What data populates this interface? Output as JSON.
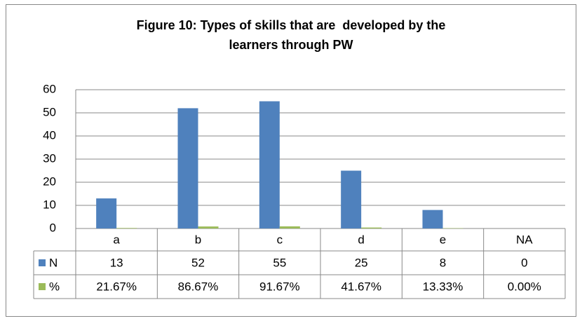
{
  "chart_data": {
    "type": "bar",
    "title": "Figure 10: Types of skills that are  developed by the learners through PW",
    "categories": [
      "a",
      "b",
      "c",
      "d",
      "e",
      "NA"
    ],
    "series": [
      {
        "name": "N",
        "color": "#4f81bd",
        "values": [
          13,
          52,
          55,
          25,
          8,
          0
        ]
      },
      {
        "name": "%",
        "color": "#9bbb59",
        "values": [
          0.2167,
          0.8667,
          0.9167,
          0.4167,
          0.1333,
          0
        ],
        "value_labels": [
          "21.67%",
          "86.67%",
          "91.67%",
          "41.67%",
          "13.33%",
          "0.00%"
        ]
      }
    ],
    "ylim": [
      0,
      60
    ],
    "yticks": [
      0,
      10,
      20,
      30,
      40,
      50,
      60
    ],
    "grid": true
  }
}
